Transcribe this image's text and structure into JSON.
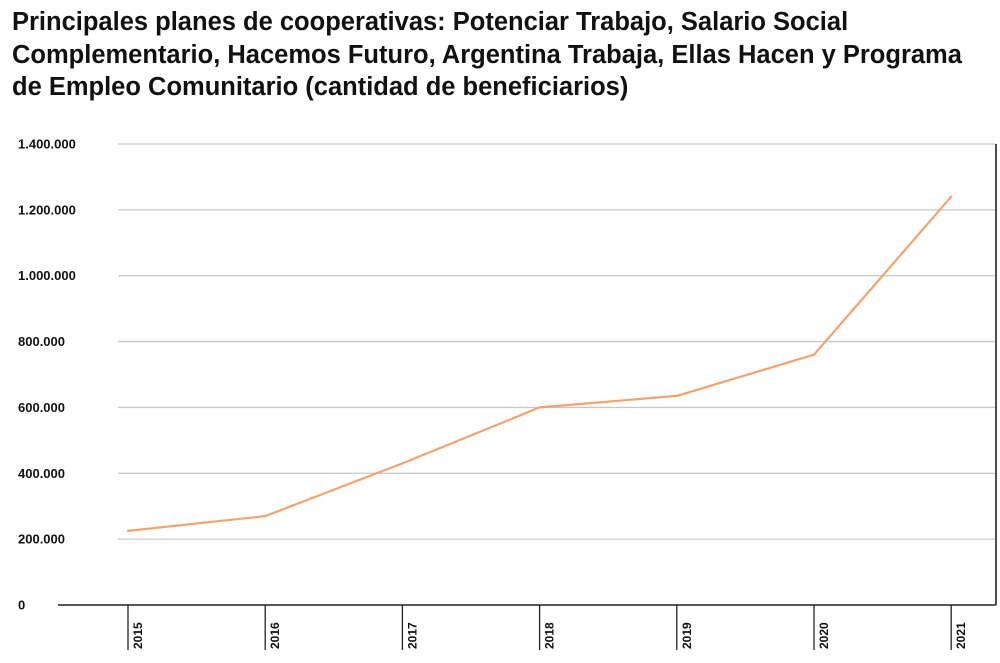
{
  "chart_data": {
    "type": "line",
    "title": "Principales planes de cooperativas: Potenciar Trabajo, Salario Social Complementario, Hacemos Futuro, Argentina Trabaja, Ellas Hacen y Programa de Empleo Comunitario (cantidad de beneficiarios)",
    "xlabel": "",
    "ylabel": "",
    "x": [
      "2015",
      "2016",
      "2017",
      "2018",
      "2019",
      "2020",
      "2021"
    ],
    "series": [
      {
        "values": [
          225000,
          270000,
          430000,
          600000,
          635000,
          760000,
          1240000
        ],
        "color": "#f2a36e"
      }
    ],
    "ylim": [
      0,
      1400000
    ],
    "yticks": [
      "0",
      "200.000",
      "400.000",
      "600.000",
      "800.000",
      "1.000.000",
      "1.200.000",
      "1.400.000"
    ],
    "grid": true,
    "legend": "none",
    "colors": {
      "line": "#f2a36e",
      "grid": "#c8c8c8",
      "axis": "#222222",
      "text": "#111111"
    }
  }
}
